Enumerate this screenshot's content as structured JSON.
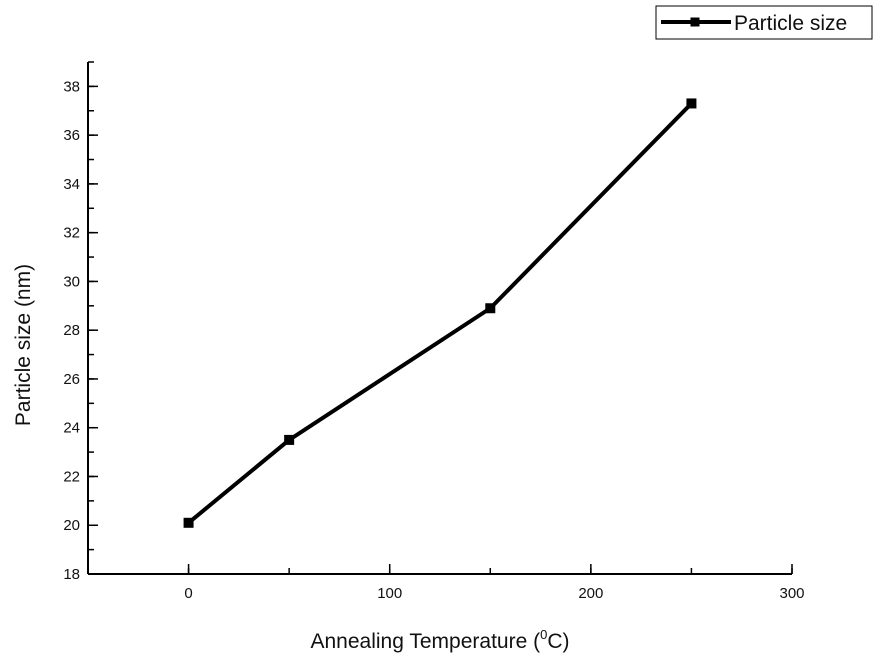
{
  "chart_data": {
    "type": "line",
    "xlabel_main": "Annealing Temperature (",
    "xlabel_sup": "0",
    "xlabel_end": "C)",
    "ylabel": "Particle size (nm)",
    "xlim": [
      -50,
      300
    ],
    "ylim": [
      18,
      39
    ],
    "x_ticks": [
      0,
      100,
      200,
      300
    ],
    "y_ticks": [
      18,
      20,
      22,
      24,
      26,
      28,
      30,
      32,
      34,
      36,
      38
    ],
    "legend_position": "top-right",
    "series": [
      {
        "name": "Particle size",
        "x": [
          0,
          50,
          150,
          250
        ],
        "y": [
          20.1,
          23.5,
          28.9,
          37.3
        ],
        "color": "#000000",
        "marker": "square"
      }
    ]
  }
}
